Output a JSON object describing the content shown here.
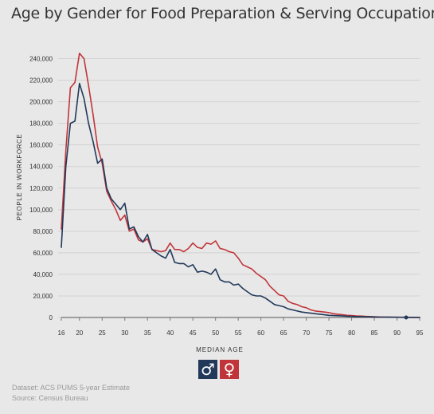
{
  "title": "Age by Gender for Food Preparation & Serving Occupations",
  "footer": {
    "dataset": "Dataset: ACS PUMS 5-year Estimate",
    "source": "Source: Census Bureau"
  },
  "legend": [
    {
      "name": "male",
      "symbol": "♂",
      "color": "#22395a",
      "icon": "male-symbol-icon"
    },
    {
      "name": "female",
      "symbol": "♀",
      "color": "#c0353a",
      "icon": "female-symbol-icon"
    }
  ],
  "chart_data": {
    "type": "line",
    "xlabel": "MEDIAN AGE",
    "ylabel": "PEOPLE IN WORKFORCE",
    "xlim": [
      16,
      95
    ],
    "ylim": [
      0,
      250000
    ],
    "x_ticks": [
      16,
      20,
      25,
      30,
      35,
      40,
      45,
      50,
      55,
      60,
      65,
      70,
      75,
      80,
      85,
      90,
      95
    ],
    "y_ticks": [
      0,
      20000,
      40000,
      60000,
      80000,
      100000,
      120000,
      140000,
      160000,
      180000,
      200000,
      220000,
      240000
    ],
    "y_tick_labels": [
      "0",
      "20,000",
      "40,000",
      "60,000",
      "80,000",
      "100,000",
      "120,000",
      "140,000",
      "160,000",
      "180,000",
      "200,000",
      "220,000",
      "240,000"
    ],
    "grid": true,
    "x": [
      16,
      17,
      18,
      19,
      20,
      21,
      22,
      23,
      24,
      25,
      26,
      27,
      28,
      29,
      30,
      31,
      32,
      33,
      34,
      35,
      36,
      37,
      38,
      39,
      40,
      41,
      42,
      43,
      44,
      45,
      46,
      47,
      48,
      49,
      50,
      51,
      52,
      53,
      54,
      55,
      56,
      57,
      58,
      59,
      60,
      61,
      62,
      63,
      64,
      65,
      66,
      67,
      68,
      69,
      70,
      71,
      72,
      73,
      74,
      75,
      76,
      77,
      78,
      79,
      80,
      81,
      82,
      83,
      84,
      85,
      86,
      87,
      88,
      89,
      90,
      91,
      92,
      93,
      94,
      95
    ],
    "series": [
      {
        "color": "#22395a",
        "values": [
          65000,
          140000,
          180000,
          182000,
          217000,
          203000,
          180000,
          163000,
          143000,
          147000,
          120000,
          110000,
          105000,
          100000,
          106000,
          82000,
          84000,
          75000,
          70000,
          77000,
          63000,
          60000,
          57000,
          55000,
          63000,
          51000,
          50000,
          50000,
          47000,
          49000,
          42000,
          43000,
          42000,
          40000,
          45000,
          35000,
          33000,
          33000,
          30000,
          31000,
          27000,
          24000,
          21000,
          20000,
          20000,
          18000,
          15000,
          12000,
          11000,
          10000,
          8000,
          7000,
          6000,
          5000,
          4500,
          4000,
          3500,
          3000,
          2500,
          2000,
          1800,
          1600,
          1400,
          1200,
          1000,
          900,
          800,
          700,
          600,
          500,
          400,
          350,
          300,
          250,
          200,
          150,
          100,
          100,
          80,
          50
        ]
      },
      {
        "color": "#c0353a",
        "values": [
          82000,
          155000,
          213000,
          218000,
          245000,
          240000,
          215000,
          188000,
          158000,
          143000,
          117000,
          108000,
          100000,
          90000,
          95000,
          80000,
          82000,
          72000,
          70000,
          73000,
          63000,
          62000,
          61000,
          62000,
          69000,
          63000,
          63000,
          61000,
          64000,
          69000,
          65000,
          64000,
          69000,
          68000,
          71000,
          64000,
          63000,
          61000,
          60000,
          55000,
          49000,
          47000,
          45000,
          41000,
          38000,
          35000,
          29000,
          25000,
          21000,
          20000,
          15000,
          13000,
          12000,
          10000,
          9000,
          7000,
          6000,
          5500,
          5000,
          4500,
          3500,
          3000,
          2500,
          2000,
          1800,
          1500,
          1300,
          1000,
          900,
          700,
          500,
          400,
          350,
          300,
          250,
          200,
          200,
          150,
          100,
          100
        ]
      }
    ]
  }
}
